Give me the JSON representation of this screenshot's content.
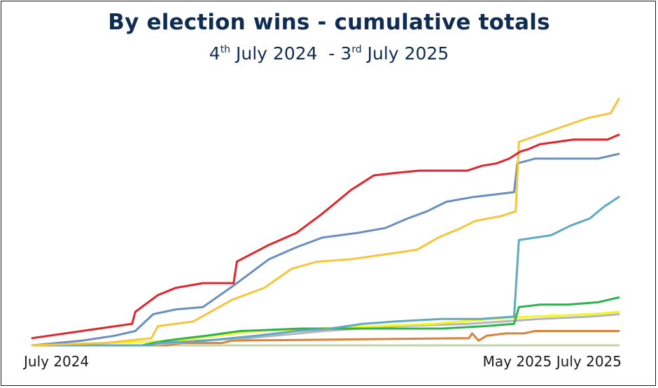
{
  "title": "By election wins - cumulative totals",
  "subtitle": {
    "start_day": "4",
    "start_suffix": "th",
    "start_rest": " July 2024  - ",
    "end_day": "3",
    "end_suffix": "rd",
    "end_rest": " July 2025"
  },
  "chart_data": {
    "type": "line",
    "title": "By election wins - cumulative totals",
    "subtitle": "4th July 2024  - 3rd July 2025",
    "xlabel": "",
    "ylabel": "",
    "x_range": [
      "2024-07-04",
      "2025-07-03"
    ],
    "y_range": [
      0,
      118
    ],
    "grid": false,
    "legend": "none",
    "x_ticks": [
      {
        "date": "2024-07-04",
        "label": "July 2024"
      },
      {
        "date": "2025-05-01",
        "label": "May 2025"
      },
      {
        "date": "2025-07-03",
        "label": "July 2025"
      }
    ],
    "series": [
      {
        "color": "#e0262c",
        "points": [
          [
            "2024-07-04",
            3
          ],
          [
            "2024-09-04",
            9
          ],
          [
            "2024-09-06",
            14
          ],
          [
            "2024-09-20",
            21
          ],
          [
            "2024-10-01",
            24
          ],
          [
            "2024-10-18",
            26
          ],
          [
            "2024-11-06",
            26
          ],
          [
            "2024-11-08",
            35
          ],
          [
            "2024-11-28",
            42
          ],
          [
            "2024-12-15",
            47
          ],
          [
            "2024-12-31",
            55
          ],
          [
            "2025-01-18",
            65
          ],
          [
            "2025-02-01",
            71
          ],
          [
            "2025-02-14",
            72
          ],
          [
            "2025-03-01",
            73
          ],
          [
            "2025-03-31",
            73
          ],
          [
            "2025-04-09",
            75
          ],
          [
            "2025-04-18",
            76
          ],
          [
            "2025-04-26",
            78
          ],
          [
            "2025-05-03",
            81
          ],
          [
            "2025-05-08",
            82
          ],
          [
            "2025-05-15",
            84
          ],
          [
            "2025-06-05",
            86
          ],
          [
            "2025-06-26",
            86
          ],
          [
            "2025-07-03",
            88
          ]
        ]
      },
      {
        "color": "#f5c53b",
        "points": [
          [
            "2024-07-04",
            0
          ],
          [
            "2024-08-18",
            1
          ],
          [
            "2024-09-16",
            3
          ],
          [
            "2024-09-20",
            8
          ],
          [
            "2024-10-12",
            10
          ],
          [
            "2024-11-05",
            19
          ],
          [
            "2024-11-25",
            24
          ],
          [
            "2024-12-12",
            32
          ],
          [
            "2024-12-28",
            35
          ],
          [
            "2025-01-18",
            36
          ],
          [
            "2025-02-08",
            38
          ],
          [
            "2025-02-28",
            40
          ],
          [
            "2025-03-13",
            45
          ],
          [
            "2025-03-27",
            49
          ],
          [
            "2025-04-05",
            52
          ],
          [
            "2025-04-21",
            54
          ],
          [
            "2025-04-30",
            56
          ],
          [
            "2025-05-02",
            85
          ],
          [
            "2025-05-15",
            88
          ],
          [
            "2025-06-01",
            92
          ],
          [
            "2025-06-14",
            95
          ],
          [
            "2025-06-28",
            97
          ],
          [
            "2025-07-03",
            103
          ]
        ]
      },
      {
        "color": "#6a8fbf",
        "points": [
          [
            "2024-07-04",
            0
          ],
          [
            "2024-08-04",
            2
          ],
          [
            "2024-08-24",
            4
          ],
          [
            "2024-09-06",
            6
          ],
          [
            "2024-09-17",
            13
          ],
          [
            "2024-10-01",
            15
          ],
          [
            "2024-10-18",
            16
          ],
          [
            "2024-11-06",
            25
          ],
          [
            "2024-11-28",
            36
          ],
          [
            "2024-12-15",
            41
          ],
          [
            "2024-12-31",
            45
          ],
          [
            "2025-01-22",
            47
          ],
          [
            "2025-02-08",
            49
          ],
          [
            "2025-02-22",
            53
          ],
          [
            "2025-03-06",
            56
          ],
          [
            "2025-03-18",
            60
          ],
          [
            "2025-04-04",
            62
          ],
          [
            "2025-04-29",
            64
          ],
          [
            "2025-05-01",
            76
          ],
          [
            "2025-05-12",
            78
          ],
          [
            "2025-06-20",
            78
          ],
          [
            "2025-07-03",
            80
          ]
        ]
      },
      {
        "color": "#5fa9c3",
        "points": [
          [
            "2024-07-04",
            0
          ],
          [
            "2024-09-16",
            0
          ],
          [
            "2024-09-20",
            1
          ],
          [
            "2024-10-20",
            2
          ],
          [
            "2024-11-20",
            4
          ],
          [
            "2024-12-15",
            6
          ],
          [
            "2025-01-05",
            7
          ],
          [
            "2025-01-25",
            9
          ],
          [
            "2025-02-15",
            10
          ],
          [
            "2025-03-15",
            11
          ],
          [
            "2025-04-08",
            11
          ],
          [
            "2025-04-29",
            12
          ],
          [
            "2025-05-02",
            44
          ],
          [
            "2025-05-22",
            46
          ],
          [
            "2025-06-03",
            50
          ],
          [
            "2025-06-15",
            53
          ],
          [
            "2025-06-24",
            58
          ],
          [
            "2025-07-03",
            62
          ]
        ]
      },
      {
        "color": "#2fb14f",
        "points": [
          [
            "2024-07-04",
            0
          ],
          [
            "2024-09-10",
            0
          ],
          [
            "2024-09-25",
            2
          ],
          [
            "2024-10-20",
            4
          ],
          [
            "2024-11-10",
            6
          ],
          [
            "2024-12-18",
            7
          ],
          [
            "2025-03-15",
            7
          ],
          [
            "2025-04-10",
            8
          ],
          [
            "2025-04-29",
            9
          ],
          [
            "2025-05-02",
            16
          ],
          [
            "2025-05-15",
            17
          ],
          [
            "2025-06-01",
            17
          ],
          [
            "2025-06-20",
            18
          ],
          [
            "2025-07-03",
            20
          ]
        ]
      },
      {
        "color": "#f5f520",
        "points": [
          [
            "2024-07-04",
            0
          ],
          [
            "2024-08-20",
            1
          ],
          [
            "2024-10-01",
            2
          ],
          [
            "2024-10-25",
            4
          ],
          [
            "2024-11-20",
            6
          ],
          [
            "2025-02-01",
            8
          ],
          [
            "2025-03-10",
            9
          ],
          [
            "2025-04-15",
            11
          ],
          [
            "2025-05-10",
            12
          ],
          [
            "2025-06-15",
            13
          ],
          [
            "2025-07-03",
            14
          ]
        ]
      },
      {
        "color": "#b5b5b5",
        "points": [
          [
            "2024-07-04",
            0
          ],
          [
            "2024-09-15",
            0
          ],
          [
            "2024-10-15",
            2
          ],
          [
            "2024-11-15",
            3
          ],
          [
            "2025-01-01",
            6
          ],
          [
            "2025-02-15",
            8
          ],
          [
            "2025-04-01",
            9
          ],
          [
            "2025-05-15",
            11
          ],
          [
            "2025-06-15",
            12
          ],
          [
            "2025-07-03",
            13
          ]
        ]
      },
      {
        "color": "#d9823b",
        "points": [
          [
            "2024-07-04",
            0
          ],
          [
            "2024-09-25",
            0
          ],
          [
            "2024-10-05",
            1
          ],
          [
            "2024-10-30",
            1
          ],
          [
            "2024-11-05",
            2
          ],
          [
            "2025-04-01",
            3
          ],
          [
            "2025-04-03",
            5
          ],
          [
            "2025-04-07",
            2
          ],
          [
            "2025-04-12",
            4
          ],
          [
            "2025-04-24",
            5
          ],
          [
            "2025-05-05",
            5
          ],
          [
            "2025-05-12",
            6
          ],
          [
            "2025-07-03",
            6
          ]
        ]
      },
      {
        "color": "#c2d4a8",
        "points": [
          [
            "2024-07-04",
            0
          ],
          [
            "2025-07-03",
            0
          ]
        ]
      }
    ]
  }
}
